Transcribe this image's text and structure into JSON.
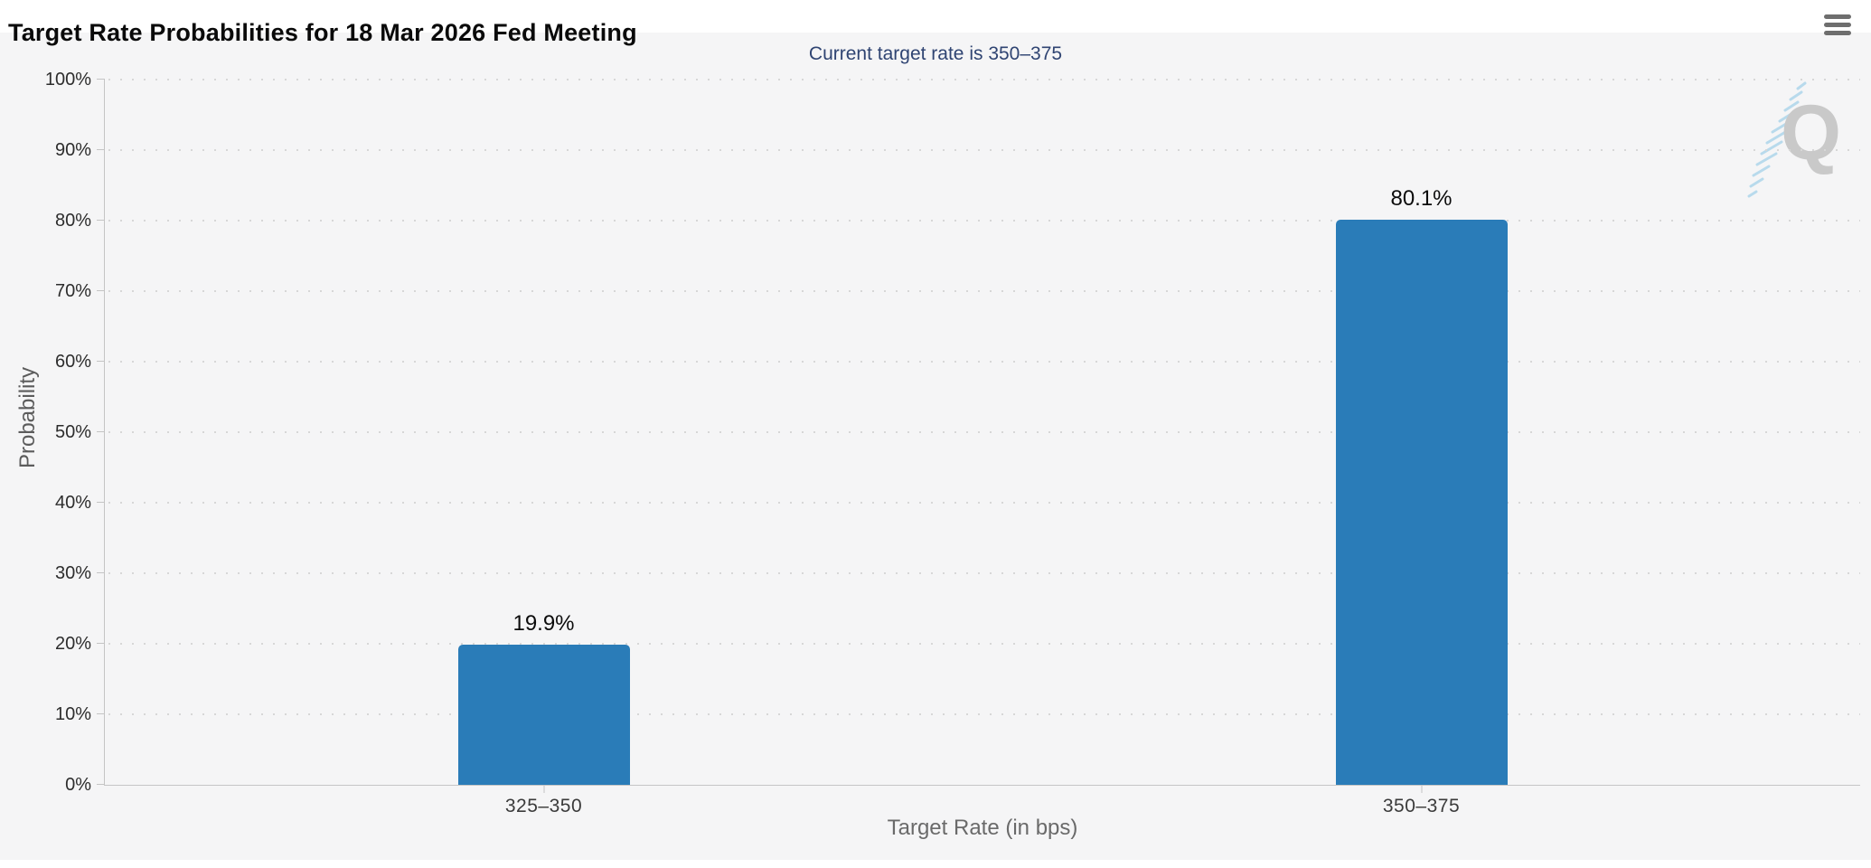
{
  "header": {
    "menu_icon": "hamburger-menu-icon"
  },
  "watermark": {
    "letter": "Q"
  },
  "chart_data": {
    "type": "bar",
    "title": "Target Rate Probabilities for 18 Mar 2026 Fed Meeting",
    "subtitle": "Current target rate is 350–375",
    "xlabel": "Target Rate (in bps)",
    "ylabel": "Probability",
    "categories": [
      "325–350",
      "350–375"
    ],
    "values": [
      19.9,
      80.1
    ],
    "value_labels": [
      "19.9%",
      "80.1%"
    ],
    "ylim": [
      0,
      100
    ],
    "ytick_step": 10,
    "yticks": [
      "0%",
      "10%",
      "20%",
      "30%",
      "40%",
      "50%",
      "60%",
      "70%",
      "80%",
      "90%",
      "100%"
    ],
    "grid": "horizontal-dotted",
    "legend": "none",
    "colors": {
      "bar": "#2a7cb8",
      "subtitle": "#2f4472",
      "axis_line": "#c4c4c4",
      "grid_dot": "#d7d7d7",
      "panel_background": "#f5f5f6",
      "watermark_gray": "#c9c9c9",
      "watermark_blue": "#aed6eb"
    }
  }
}
